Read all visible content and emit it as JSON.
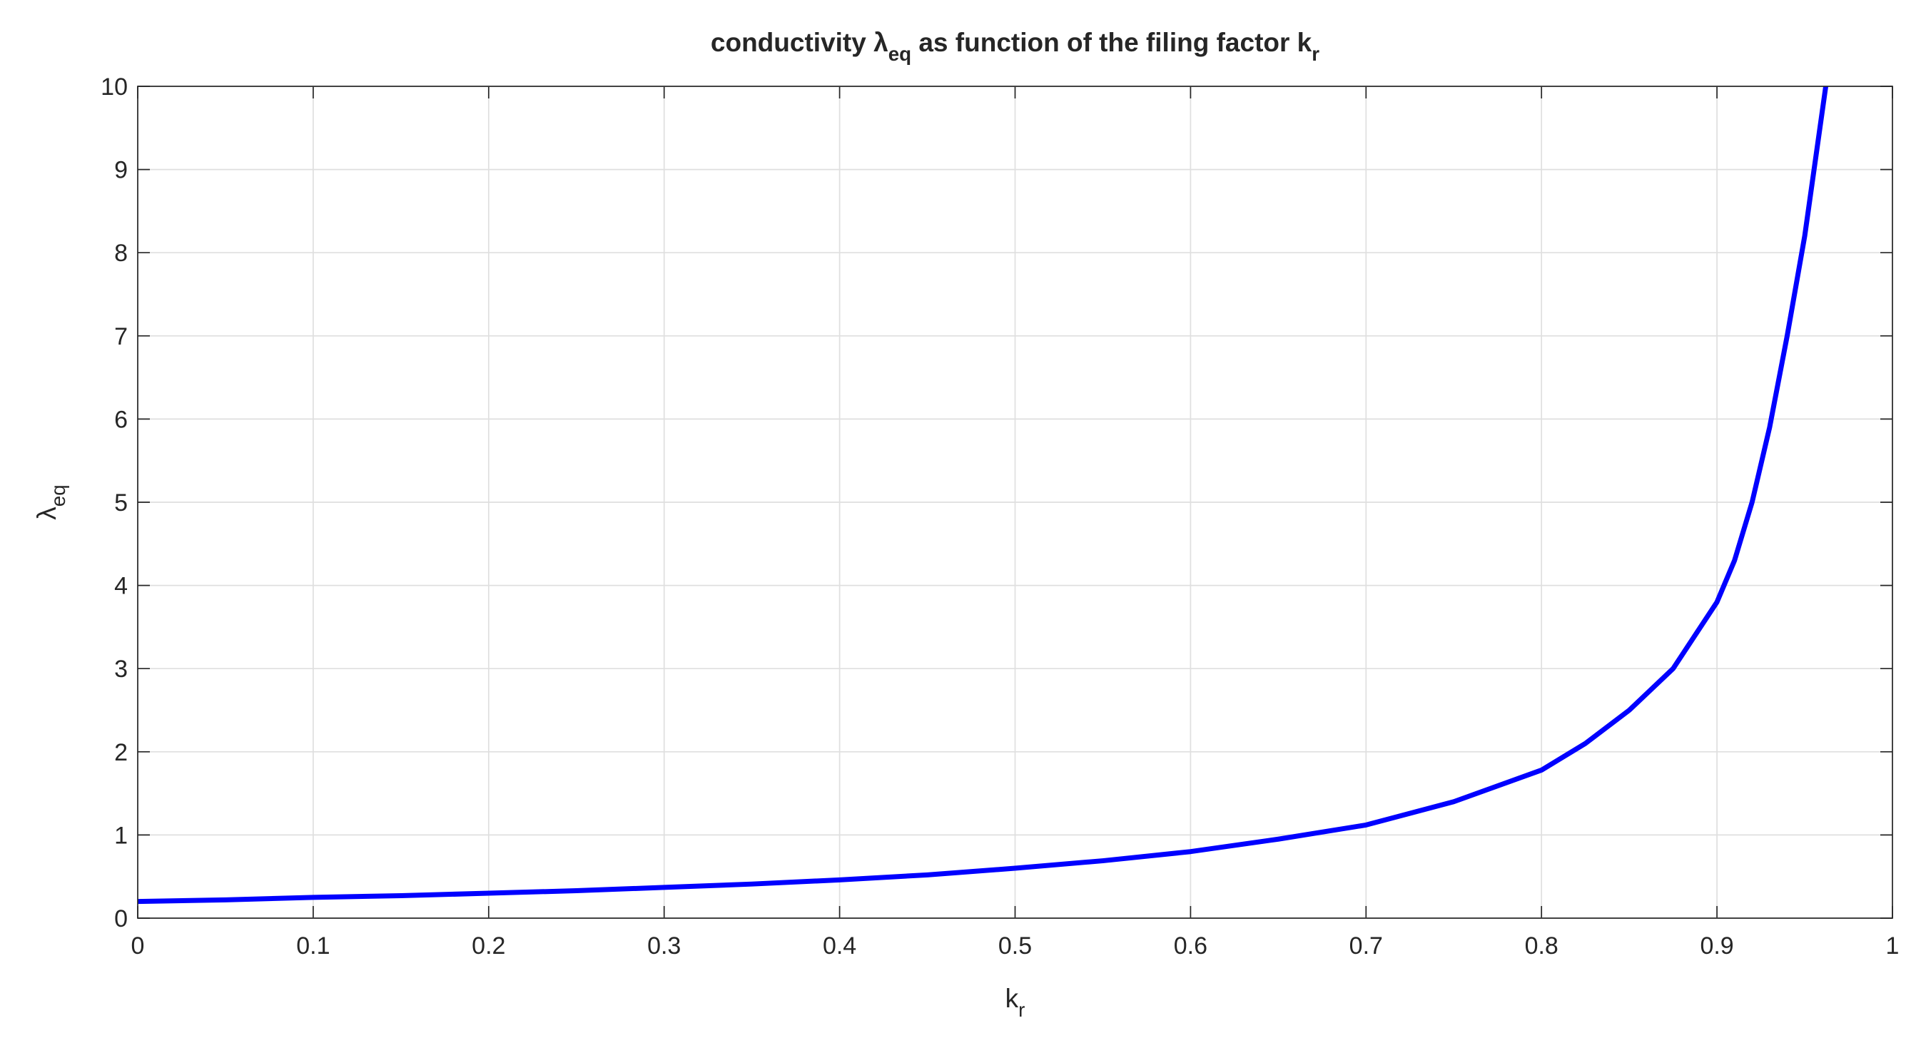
{
  "chart_data": {
    "type": "line",
    "title": [
      "conductivity λ",
      "eq",
      " as function of the filing factor k",
      "r"
    ],
    "xlabel": [
      "k",
      "r"
    ],
    "ylabel": [
      "λ",
      "eq"
    ],
    "x": [
      0,
      0.05,
      0.1,
      0.15,
      0.2,
      0.25,
      0.3,
      0.35,
      0.4,
      0.45,
      0.5,
      0.55,
      0.6,
      0.65,
      0.7,
      0.75,
      0.8,
      0.825,
      0.85,
      0.875,
      0.9,
      0.91,
      0.92,
      0.93,
      0.94,
      0.95,
      0.962
    ],
    "series": [
      {
        "name": "λeq",
        "color": "#0000ff",
        "values": [
          0.2,
          0.22,
          0.25,
          0.27,
          0.3,
          0.33,
          0.37,
          0.41,
          0.46,
          0.52,
          0.6,
          0.69,
          0.8,
          0.95,
          1.12,
          1.4,
          1.78,
          2.1,
          2.5,
          3.0,
          3.8,
          4.3,
          5.0,
          5.9,
          7.0,
          8.2,
          10
        ]
      }
    ],
    "xlim": [
      0,
      1
    ],
    "ylim": [
      0,
      10
    ],
    "xticks": [
      0,
      0.1,
      0.2,
      0.3,
      0.4,
      0.5,
      0.6,
      0.7,
      0.8,
      0.9,
      1
    ],
    "yticks": [
      0,
      1,
      2,
      3,
      4,
      5,
      6,
      7,
      8,
      9,
      10
    ],
    "grid": true
  }
}
